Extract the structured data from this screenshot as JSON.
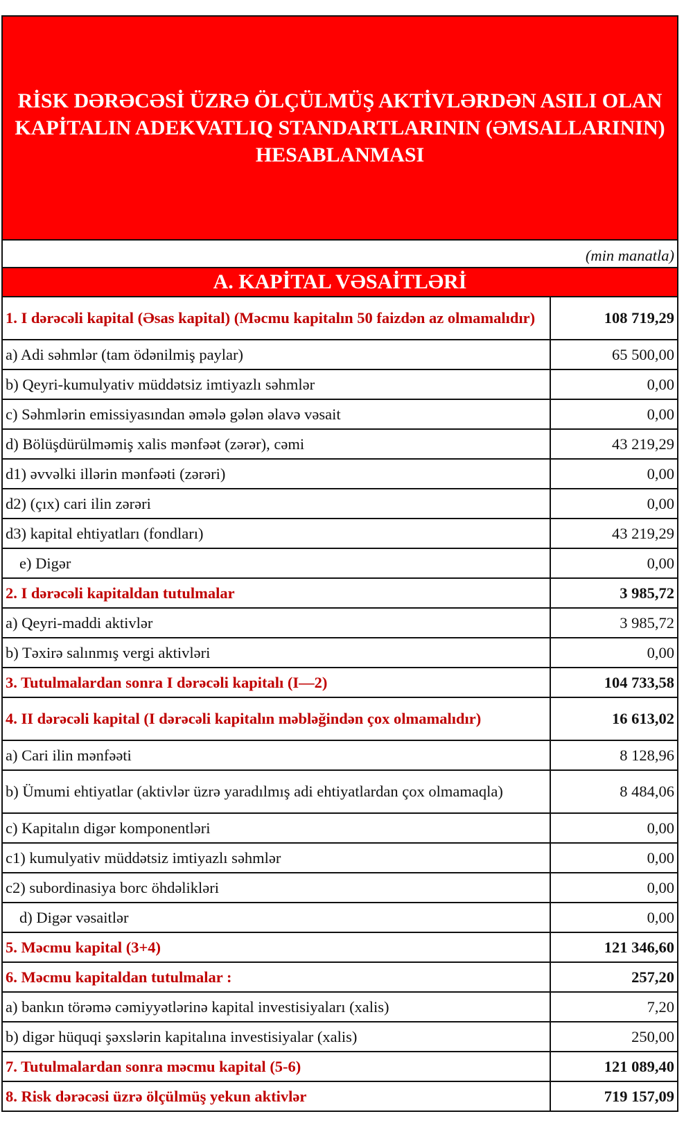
{
  "title": "RİSK DƏRƏCƏSİ ÜZRƏ ÖLÇÜLMÜŞ AKTİVLƏRDƏN ASILI OLAN KAPİTALIN ADEKVATLIQ STANDARTLARININ (ƏMSALLARININ) HESABLANMASI",
  "unit": "(min manatla)",
  "section_a": "A. KAPİTAL VƏSAİTLƏRİ",
  "colors": {
    "header_red": "#ff0000",
    "heading_text": "#c00000"
  },
  "rows": [
    {
      "label": "1. I dərəcəli kapital (Əsas kapital) (Məcmu kapitalın 50 faizdən  az olmamalıdır)",
      "value": "108 719,29",
      "type": "heading",
      "tall": true
    },
    {
      "label": "a) Adi səhmlər (tam ödənilmiş paylar)",
      "value": "65 500,00"
    },
    {
      "label": "b) Qeyri-kumulyativ müddətsiz imtiyazlı səhmlər",
      "value": "0,00"
    },
    {
      "label": "c) Səhmlərin emissiyasından əmələ gələn  əlavə vəsait",
      "value": "0,00"
    },
    {
      "label": "d)   Bölüşdürülməmiş xalis mənfəət (zərər), cəmi",
      "value": "43 219,29"
    },
    {
      "label": "d1) əvvəlki illərin mənfəəti (zərəri)",
      "value": "0,00"
    },
    {
      "label": "d2) (çıx) cari ilin zərəri",
      "value": "0,00"
    },
    {
      "label": "d3) kapital ehtiyatları (fondları)",
      "value": "43 219,29"
    },
    {
      "label": "e) Digər",
      "value": "0,00",
      "indent": true
    },
    {
      "label": "2. I dərəcəli kapitaldan  tutulmalar",
      "value": "3 985,72",
      "type": "heading"
    },
    {
      "label": "a) Qeyri-maddi aktivlər",
      "value": "3 985,72"
    },
    {
      "label": "b) Təxirə salınmış vergi aktivləri",
      "value": "0,00"
    },
    {
      "label": "3. Tutulmalardan  sonra I dərəcəli kapitalı (I—2)",
      "value": "104 733,58",
      "type": "heading"
    },
    {
      "label": "4. II dərəcəli  kapital (I dərəcəli  kapitalın  məbləğindən çox olmamalıdır)",
      "value": "16 613,02",
      "type": "heading",
      "tall": true
    },
    {
      "label": "a) Cari ilin mənfəəti",
      "value": "8 128,96"
    },
    {
      "label": "b) Ümumi ehtiyatlar (aktivlər üzrə yaradılmış adi ehtiyatlardan çox olmamaqla)",
      "value": "8 484,06",
      "tall": true
    },
    {
      "label": "c)  Kapitalın digər komponentləri",
      "value": "0,00"
    },
    {
      "label": "c1) kumulyativ müddətsiz imtiyazlı səhmlər",
      "value": "0,00"
    },
    {
      "label": "c2) subordinasiya borc öhdəlikləri",
      "value": "0,00"
    },
    {
      "label": "d) Digər vəsaitlər",
      "value": "0,00",
      "indent": true
    },
    {
      "label": "5. Məcmu kapital (3+4)",
      "value": "121 346,60",
      "type": "heading"
    },
    {
      "label": "6. Məcmu kapitaldan tutulmalar :",
      "value": "257,20",
      "type": "heading"
    },
    {
      "label": "a)   bankın törəmə cəmiyyətlərinə kapital investisiyaları (xalis)",
      "value": "7,20"
    },
    {
      "label": "b)   digər hüquqi şəxslərin kapitalına investisiyalar (xalis)",
      "value": "250,00"
    },
    {
      "label": "7. Tutulmalardan  sonra məcmu kapital (5-6)",
      "value": "121 089,40",
      "type": "heading"
    },
    {
      "label": "8. Risk dərəcəsi üzrə ölçülmüş  yekun aktivlər",
      "value": "719 157,09",
      "type": "heading"
    }
  ]
}
